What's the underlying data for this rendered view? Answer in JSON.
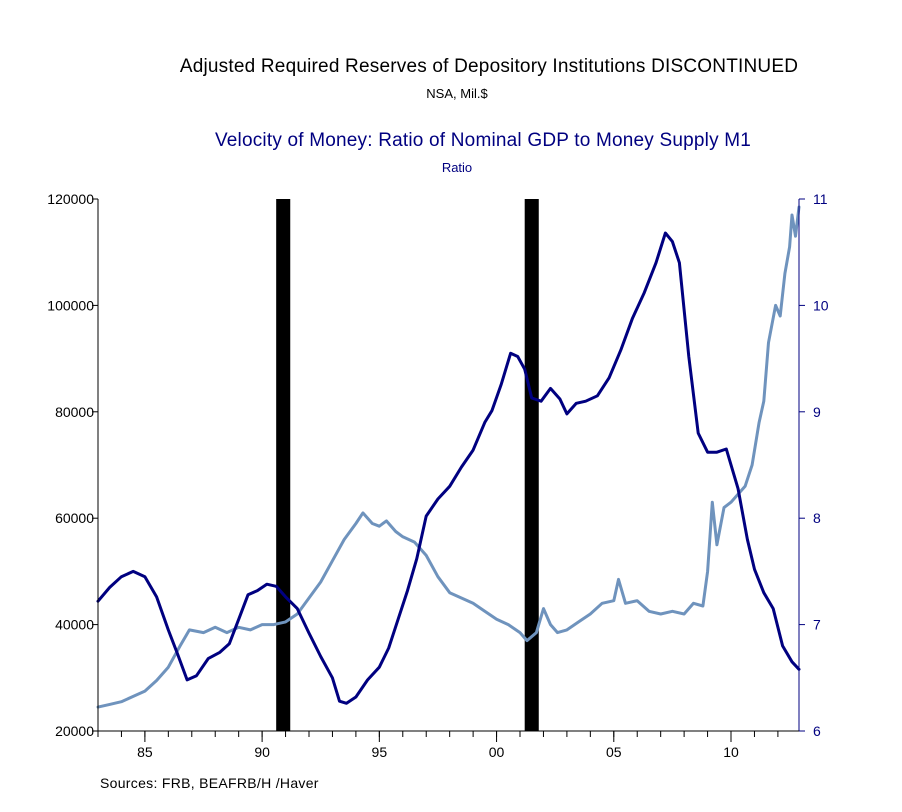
{
  "titles": {
    "series1_title": "Adjusted Required Reserves of Depository Institutions DISCONTINUED",
    "series1_unit": "NSA, Mil.$",
    "series2_title": "Velocity of Money: Ratio of Nominal GDP to Money Supply M1",
    "series2_unit": "Ratio"
  },
  "source": "Sources:  FRB, BEAFRB/H /Haver",
  "chart_data": {
    "type": "line",
    "x_range": [
      1983.0,
      2012.9
    ],
    "x_ticks": [
      {
        "value": 1985,
        "label": "85"
      },
      {
        "value": 1990,
        "label": "90"
      },
      {
        "value": 1995,
        "label": "95"
      },
      {
        "value": 2000,
        "label": "00"
      },
      {
        "value": 2005,
        "label": "05"
      },
      {
        "value": 2010,
        "label": "10"
      }
    ],
    "y_left": {
      "range": [
        20000,
        120000
      ],
      "ticks": [
        "20000",
        "40000",
        "60000",
        "80000",
        "100000",
        "120000"
      ],
      "color": "#000000"
    },
    "y_right": {
      "range": [
        6,
        11
      ],
      "ticks": [
        "6",
        "7",
        "8",
        "9",
        "10",
        "11"
      ],
      "color": "#000080"
    },
    "recessions": [
      [
        1990.6,
        1991.2
      ],
      [
        2001.2,
        2001.8
      ]
    ],
    "series": [
      {
        "axis": "left",
        "color": "#6f93bd",
        "points": [
          [
            1983.0,
            24500
          ],
          [
            1983.5,
            25000
          ],
          [
            1984.0,
            25500
          ],
          [
            1984.5,
            26500
          ],
          [
            1985.0,
            27500
          ],
          [
            1985.5,
            29500
          ],
          [
            1986.0,
            32000
          ],
          [
            1986.5,
            36000
          ],
          [
            1986.9,
            39000
          ],
          [
            1987.5,
            38500
          ],
          [
            1988.0,
            39500
          ],
          [
            1988.5,
            38500
          ],
          [
            1989.0,
            39500
          ],
          [
            1989.5,
            39000
          ],
          [
            1990.0,
            40000
          ],
          [
            1990.5,
            40000
          ],
          [
            1991.0,
            40500
          ],
          [
            1991.5,
            42000
          ],
          [
            1992.0,
            45000
          ],
          [
            1992.5,
            48000
          ],
          [
            1993.0,
            52000
          ],
          [
            1993.5,
            56000
          ],
          [
            1994.0,
            59000
          ],
          [
            1994.3,
            61000
          ],
          [
            1994.7,
            59000
          ],
          [
            1995.0,
            58500
          ],
          [
            1995.3,
            59500
          ],
          [
            1995.7,
            57500
          ],
          [
            1996.0,
            56500
          ],
          [
            1996.5,
            55500
          ],
          [
            1997.0,
            53000
          ],
          [
            1997.5,
            49000
          ],
          [
            1998.0,
            46000
          ],
          [
            1998.5,
            45000
          ],
          [
            1999.0,
            44000
          ],
          [
            1999.5,
            42500
          ],
          [
            2000.0,
            41000
          ],
          [
            2000.5,
            40000
          ],
          [
            2001.0,
            38500
          ],
          [
            2001.3,
            37000
          ],
          [
            2001.7,
            38500
          ],
          [
            2002.0,
            43000
          ],
          [
            2002.3,
            40000
          ],
          [
            2002.6,
            38500
          ],
          [
            2003.0,
            39000
          ],
          [
            2003.5,
            40500
          ],
          [
            2004.0,
            42000
          ],
          [
            2004.5,
            44000
          ],
          [
            2005.0,
            44500
          ],
          [
            2005.2,
            48500
          ],
          [
            2005.5,
            44000
          ],
          [
            2006.0,
            44500
          ],
          [
            2006.5,
            42500
          ],
          [
            2007.0,
            42000
          ],
          [
            2007.5,
            42500
          ],
          [
            2008.0,
            42000
          ],
          [
            2008.4,
            44000
          ],
          [
            2008.8,
            43500
          ],
          [
            2009.0,
            50000
          ],
          [
            2009.2,
            63000
          ],
          [
            2009.4,
            55000
          ],
          [
            2009.7,
            62000
          ],
          [
            2010.0,
            63000
          ],
          [
            2010.3,
            64500
          ],
          [
            2010.6,
            66000
          ],
          [
            2010.9,
            70000
          ],
          [
            2011.2,
            78000
          ],
          [
            2011.4,
            82000
          ],
          [
            2011.6,
            93000
          ],
          [
            2011.9,
            100000
          ],
          [
            2012.1,
            98000
          ],
          [
            2012.3,
            106000
          ],
          [
            2012.5,
            111000
          ],
          [
            2012.6,
            117000
          ],
          [
            2012.75,
            113000
          ],
          [
            2012.9,
            118500
          ]
        ]
      },
      {
        "axis": "right",
        "color": "#000080",
        "points": [
          [
            1983.0,
            7.22
          ],
          [
            1983.5,
            7.35
          ],
          [
            1984.0,
            7.45
          ],
          [
            1984.5,
            7.5
          ],
          [
            1985.0,
            7.45
          ],
          [
            1985.5,
            7.26
          ],
          [
            1986.0,
            6.95
          ],
          [
            1986.4,
            6.72
          ],
          [
            1986.8,
            6.48
          ],
          [
            1987.2,
            6.52
          ],
          [
            1987.7,
            6.68
          ],
          [
            1988.2,
            6.74
          ],
          [
            1988.6,
            6.82
          ],
          [
            1989.0,
            7.05
          ],
          [
            1989.4,
            7.28
          ],
          [
            1989.8,
            7.32
          ],
          [
            1990.2,
            7.38
          ],
          [
            1990.6,
            7.36
          ],
          [
            1991.0,
            7.26
          ],
          [
            1991.5,
            7.15
          ],
          [
            1992.0,
            6.92
          ],
          [
            1992.5,
            6.7
          ],
          [
            1993.0,
            6.5
          ],
          [
            1993.3,
            6.28
          ],
          [
            1993.6,
            6.26
          ],
          [
            1994.0,
            6.32
          ],
          [
            1994.5,
            6.48
          ],
          [
            1995.0,
            6.6
          ],
          [
            1995.4,
            6.78
          ],
          [
            1995.8,
            7.05
          ],
          [
            1996.2,
            7.32
          ],
          [
            1996.6,
            7.62
          ],
          [
            1997.0,
            8.02
          ],
          [
            1997.5,
            8.18
          ],
          [
            1998.0,
            8.3
          ],
          [
            1998.5,
            8.48
          ],
          [
            1999.0,
            8.64
          ],
          [
            1999.5,
            8.9
          ],
          [
            1999.8,
            9.01
          ],
          [
            2000.2,
            9.26
          ],
          [
            2000.6,
            9.55
          ],
          [
            2000.9,
            9.52
          ],
          [
            2001.2,
            9.4
          ],
          [
            2001.5,
            9.13
          ],
          [
            2001.9,
            9.1
          ],
          [
            2002.3,
            9.22
          ],
          [
            2002.7,
            9.12
          ],
          [
            2003.0,
            8.98
          ],
          [
            2003.4,
            9.08
          ],
          [
            2003.8,
            9.1
          ],
          [
            2004.3,
            9.15
          ],
          [
            2004.8,
            9.32
          ],
          [
            2005.3,
            9.58
          ],
          [
            2005.8,
            9.88
          ],
          [
            2006.3,
            10.12
          ],
          [
            2006.8,
            10.4
          ],
          [
            2007.2,
            10.68
          ],
          [
            2007.5,
            10.6
          ],
          [
            2007.8,
            10.4
          ],
          [
            2008.2,
            9.52
          ],
          [
            2008.6,
            8.8
          ],
          [
            2009.0,
            8.62
          ],
          [
            2009.4,
            8.62
          ],
          [
            2009.8,
            8.65
          ],
          [
            2010.3,
            8.28
          ],
          [
            2010.7,
            7.8
          ],
          [
            2011.0,
            7.52
          ],
          [
            2011.4,
            7.3
          ],
          [
            2011.8,
            7.15
          ],
          [
            2012.2,
            6.8
          ],
          [
            2012.6,
            6.65
          ],
          [
            2012.9,
            6.58
          ]
        ]
      }
    ]
  }
}
